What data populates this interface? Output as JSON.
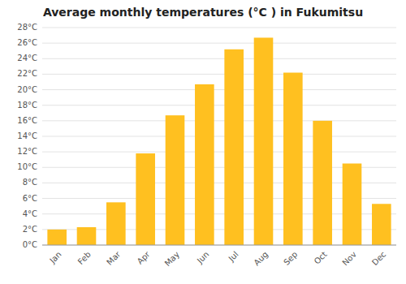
{
  "chart_data": {
    "type": "bar",
    "title": "Average monthly temperatures (°C ) in Fukumitsu",
    "categories": [
      "Jan",
      "Feb",
      "Mar",
      "Apr",
      "May",
      "Jun",
      "Jul",
      "Aug",
      "Sep",
      "Oct",
      "Nov",
      "Dec"
    ],
    "values": [
      2.0,
      2.3,
      5.5,
      11.8,
      16.7,
      20.7,
      25.2,
      26.7,
      22.2,
      16.0,
      10.5,
      5.3
    ],
    "color": "#FFC020",
    "ylim": [
      0,
      28
    ],
    "yticks": [
      {
        "value": 0,
        "label": "0°C"
      },
      {
        "value": 2,
        "label": "2°C"
      },
      {
        "value": 4,
        "label": "4°C"
      },
      {
        "value": 6,
        "label": "6°C"
      },
      {
        "value": 8,
        "label": "8°C"
      },
      {
        "value": 10,
        "label": "10°C"
      },
      {
        "value": 12,
        "label": "12°C"
      },
      {
        "value": 14,
        "label": "14°C"
      },
      {
        "value": 16,
        "label": "16°C"
      },
      {
        "value": 18,
        "label": "18°C"
      },
      {
        "value": 20,
        "label": "20°C"
      },
      {
        "value": 22,
        "label": "22°C"
      },
      {
        "value": 24,
        "label": "24°C"
      },
      {
        "value": 26,
        "label": "26°C"
      },
      {
        "value": 28,
        "label": "28°C"
      }
    ],
    "grid": true
  }
}
